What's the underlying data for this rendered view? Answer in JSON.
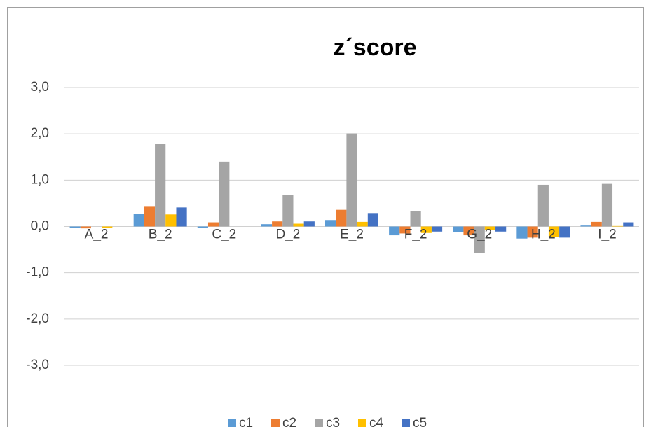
{
  "chart_data": {
    "type": "bar",
    "title": "z´score",
    "categories": [
      "A_2",
      "B_2",
      "C_2",
      "D_2",
      "E_2",
      "F_2",
      "G_2",
      "H_2",
      "I_2"
    ],
    "series": [
      {
        "name": "c1",
        "color": "#5b9bd5",
        "values": [
          -0.03,
          0.27,
          -0.03,
          0.05,
          0.14,
          -0.19,
          -0.12,
          -0.26,
          0.02
        ]
      },
      {
        "name": "c2",
        "color": "#ed7d31",
        "values": [
          -0.04,
          0.44,
          0.09,
          0.11,
          0.36,
          -0.15,
          -0.19,
          -0.24,
          0.1
        ]
      },
      {
        "name": "c3",
        "color": "#a5a5a5",
        "values": [
          0,
          1.78,
          1.4,
          0.68,
          2.01,
          0.33,
          -0.58,
          0.9,
          0.92
        ]
      },
      {
        "name": "c4",
        "color": "#ffc000",
        "values": [
          -0.03,
          0.26,
          0,
          0.06,
          0.1,
          -0.14,
          -0.08,
          -0.22,
          0.01
        ]
      },
      {
        "name": "c5",
        "color": "#4472c4",
        "values": [
          0,
          0.41,
          0,
          0.11,
          0.29,
          -0.11,
          -0.11,
          -0.24,
          0.09
        ]
      }
    ],
    "ylim": [
      -3,
      3
    ],
    "yticks": [
      {
        "value": -3,
        "label": "-3,0"
      },
      {
        "value": -2,
        "label": "-2,0"
      },
      {
        "value": -1,
        "label": "-1,0"
      },
      {
        "value": 0,
        "label": "0,0"
      },
      {
        "value": 1,
        "label": "1,0"
      },
      {
        "value": 2,
        "label": "2,0"
      },
      {
        "value": 3,
        "label": "3,0"
      }
    ],
    "grid": true,
    "legend": "bottom"
  }
}
